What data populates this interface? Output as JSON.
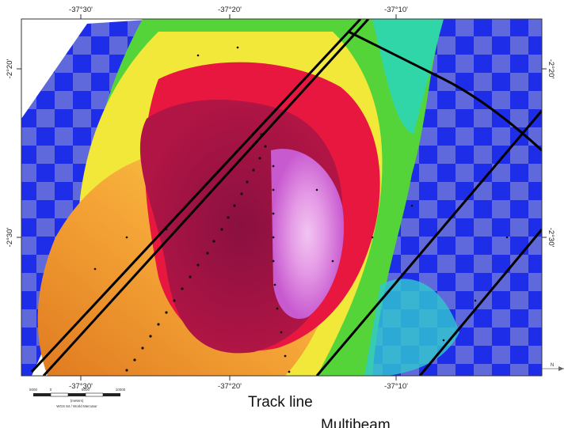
{
  "map": {
    "longitude_ticks_top": [
      "-37°30'",
      "-37°20'",
      "-37°10'"
    ],
    "longitude_ticks_bottom": [
      "-37°30'",
      "-37°20'",
      "-37°10'"
    ],
    "latitude_ticks_left": [
      "-2°20'",
      "-2°30'"
    ],
    "latitude_ticks_right": [
      "-2°20'",
      "-2°30'"
    ],
    "scale_bar": {
      "labels": [
        "5000",
        "0",
        "5000",
        "10000"
      ],
      "unit": "(meters)",
      "projection": "WGS 84 / World Mercator"
    },
    "north_arrow": "N",
    "colors": {
      "deep": "#1b28e6",
      "peak": "#e89ee8",
      "track_line": "#000000"
    }
  },
  "legend": {
    "track_line": "Track line",
    "multibeam": "Multibeam"
  }
}
